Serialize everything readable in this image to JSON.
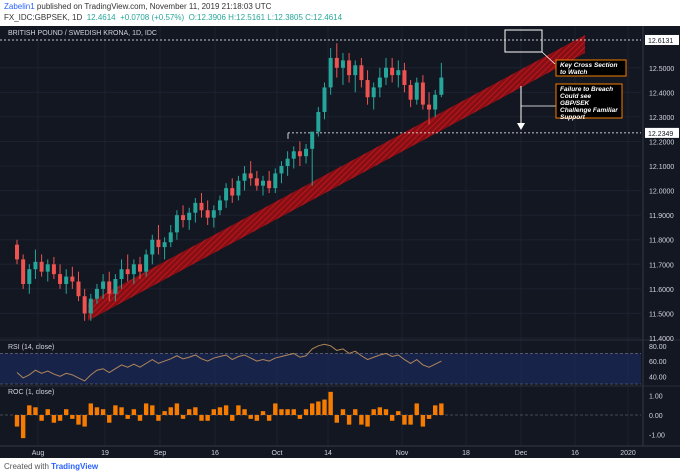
{
  "header": {
    "user": "Zabelin1",
    "published": "published on TradingView.com, November 11, 2019 21:18:03 UTC",
    "symbol": "FX_IDC:GBPSEK, 1D",
    "quote": "12.4614",
    "change": "+0.0708 (+0.57%)",
    "ohlc": "O:12.3906 H:12.5161 L:12.3805 C:12.4614"
  },
  "footer": {
    "created_with": "Created with",
    "brand": "TradingView"
  },
  "chart_data": {
    "type": "candlestick",
    "title": "BRITISH POUND / SWEDISH KRONA, 1D, IDC",
    "price_axis": {
      "range": [
        11.4,
        12.67
      ],
      "ticks": [
        "12.5000",
        "12.4000",
        "12.3000",
        "12.2000",
        "12.1000",
        "12.0000",
        "11.9000",
        "11.8000",
        "11.7000",
        "11.6000",
        "11.5000",
        "11.4000"
      ],
      "tick_values": [
        12.5,
        12.4,
        12.3,
        12.2,
        12.1,
        12.0,
        11.9,
        11.8,
        11.7,
        11.6,
        11.5,
        11.4
      ]
    },
    "levels": [
      {
        "label": "12.6131",
        "value": 12.6131
      },
      {
        "label": "12.2349",
        "value": 12.2349
      }
    ],
    "x_axis": {
      "labels": [
        "Aug",
        "19",
        "Sep",
        "16",
        "Oct",
        "14",
        "Nov",
        "18",
        "Dec",
        "16",
        "2020"
      ]
    },
    "candles_ohlc": [
      [
        11.78,
        11.8,
        11.7,
        11.72
      ],
      [
        11.72,
        11.74,
        11.6,
        11.62
      ],
      [
        11.62,
        11.7,
        11.58,
        11.68
      ],
      [
        11.68,
        11.76,
        11.64,
        11.71
      ],
      [
        11.71,
        11.74,
        11.65,
        11.67
      ],
      [
        11.67,
        11.72,
        11.63,
        11.7
      ],
      [
        11.7,
        11.73,
        11.64,
        11.66
      ],
      [
        11.66,
        11.7,
        11.6,
        11.62
      ],
      [
        11.62,
        11.68,
        11.58,
        11.65
      ],
      [
        11.65,
        11.69,
        11.6,
        11.63
      ],
      [
        11.63,
        11.67,
        11.55,
        11.57
      ],
      [
        11.57,
        11.6,
        11.47,
        11.5
      ],
      [
        11.5,
        11.58,
        11.47,
        11.56
      ],
      [
        11.56,
        11.62,
        11.54,
        11.6
      ],
      [
        11.6,
        11.66,
        11.56,
        11.63
      ],
      [
        11.63,
        11.67,
        11.55,
        11.58
      ],
      [
        11.58,
        11.66,
        11.55,
        11.64
      ],
      [
        11.64,
        11.72,
        11.6,
        11.68
      ],
      [
        11.68,
        11.74,
        11.63,
        11.66
      ],
      [
        11.66,
        11.72,
        11.62,
        11.7
      ],
      [
        11.7,
        11.73,
        11.64,
        11.67
      ],
      [
        11.67,
        11.76,
        11.65,
        11.74
      ],
      [
        11.74,
        11.82,
        11.7,
        11.8
      ],
      [
        11.8,
        11.86,
        11.74,
        11.77
      ],
      [
        11.77,
        11.81,
        11.72,
        11.79
      ],
      [
        11.79,
        11.86,
        11.77,
        11.83
      ],
      [
        11.83,
        11.92,
        11.8,
        11.9
      ],
      [
        11.9,
        11.94,
        11.85,
        11.88
      ],
      [
        11.88,
        11.93,
        11.84,
        11.91
      ],
      [
        11.91,
        11.97,
        11.87,
        11.95
      ],
      [
        11.95,
        11.99,
        11.89,
        11.92
      ],
      [
        11.92,
        11.96,
        11.86,
        11.89
      ],
      [
        11.89,
        11.94,
        11.85,
        11.92
      ],
      [
        11.92,
        11.98,
        11.9,
        11.96
      ],
      [
        11.96,
        12.03,
        11.93,
        12.01
      ],
      [
        12.01,
        12.05,
        11.95,
        11.98
      ],
      [
        11.98,
        12.06,
        11.96,
        12.04
      ],
      [
        12.04,
        12.1,
        12.0,
        12.07
      ],
      [
        12.07,
        12.12,
        12.02,
        12.05
      ],
      [
        12.05,
        12.08,
        12.0,
        12.02
      ],
      [
        12.02,
        12.06,
        11.98,
        12.04
      ],
      [
        12.04,
        12.08,
        11.99,
        12.01
      ],
      [
        12.01,
        12.09,
        11.99,
        12.07
      ],
      [
        12.07,
        12.12,
        12.03,
        12.1
      ],
      [
        12.1,
        12.16,
        12.06,
        12.13
      ],
      [
        12.13,
        12.18,
        12.09,
        12.16
      ],
      [
        12.16,
        12.2,
        12.1,
        12.14
      ],
      [
        12.14,
        12.19,
        12.11,
        12.17
      ],
      [
        12.17,
        12.22,
        12.02,
        12.24
      ],
      [
        12.24,
        12.34,
        12.22,
        12.32
      ],
      [
        12.32,
        12.44,
        12.29,
        12.42
      ],
      [
        12.42,
        12.58,
        12.39,
        12.54
      ],
      [
        12.54,
        12.6,
        12.46,
        12.5
      ],
      [
        12.5,
        12.56,
        12.43,
        12.53
      ],
      [
        12.53,
        12.56,
        12.44,
        12.47
      ],
      [
        12.47,
        12.53,
        12.4,
        12.51
      ],
      [
        12.51,
        12.54,
        12.42,
        12.45
      ],
      [
        12.45,
        12.49,
        12.35,
        12.38
      ],
      [
        12.38,
        12.44,
        12.33,
        12.42
      ],
      [
        12.42,
        12.5,
        12.38,
        12.46
      ],
      [
        12.46,
        12.54,
        12.43,
        12.5
      ],
      [
        12.5,
        12.54,
        12.44,
        12.47
      ],
      [
        12.47,
        12.53,
        12.42,
        12.49
      ],
      [
        12.49,
        12.52,
        12.4,
        12.43
      ],
      [
        12.43,
        12.45,
        12.34,
        12.37
      ],
      [
        12.37,
        12.46,
        12.35,
        12.44
      ],
      [
        12.44,
        12.47,
        12.33,
        12.35
      ],
      [
        12.35,
        12.4,
        12.27,
        12.33
      ],
      [
        12.33,
        12.41,
        12.3,
        12.39
      ],
      [
        12.39,
        12.52,
        12.38,
        12.46
      ]
    ],
    "rising_channel": {
      "lower_start": {
        "x_label": "19 Aug",
        "value": 11.47
      },
      "lower_end": {
        "x_label": "Dec",
        "value": 12.56
      }
    },
    "rsi": {
      "title": "RSI (14, close)",
      "ticks": [
        "80.00",
        "60.00",
        "40.00"
      ],
      "tick_values": [
        80,
        60,
        40
      ],
      "range": [
        30,
        85
      ],
      "band": [
        30,
        70
      ],
      "values": [
        45,
        38,
        42,
        48,
        44,
        47,
        43,
        40,
        44,
        42,
        38,
        34,
        42,
        48,
        50,
        45,
        50,
        55,
        52,
        56,
        52,
        57,
        62,
        57,
        60,
        63,
        67,
        63,
        65,
        68,
        63,
        60,
        64,
        66,
        68,
        62,
        66,
        68,
        64,
        60,
        62,
        60,
        64,
        66,
        68,
        70,
        65,
        67,
        76,
        80,
        82,
        80,
        74,
        76,
        70,
        73,
        67,
        62,
        65,
        68,
        70,
        66,
        68,
        62,
        57,
        62,
        55,
        52,
        56,
        60
      ]
    },
    "roc": {
      "title": "ROC (1, close)",
      "ticks": [
        "1.00",
        "0.00",
        "-1.00"
      ],
      "tick_values": [
        1,
        0,
        -1
      ],
      "range": [
        -1.4,
        1.4
      ],
      "values": [
        -0.6,
        -1.2,
        0.5,
        0.4,
        -0.3,
        0.3,
        -0.4,
        -0.3,
        0.3,
        -0.2,
        -0.5,
        -0.6,
        0.6,
        0.4,
        0.3,
        -0.4,
        0.5,
        0.4,
        -0.2,
        0.3,
        -0.3,
        0.6,
        0.5,
        -0.3,
        0.2,
        0.4,
        0.6,
        -0.2,
        0.3,
        0.4,
        -0.3,
        -0.3,
        0.3,
        0.4,
        0.5,
        -0.3,
        0.5,
        0.3,
        -0.2,
        -0.3,
        0.2,
        -0.3,
        0.6,
        0.3,
        0.3,
        0.3,
        -0.2,
        0.3,
        0.6,
        0.7,
        0.8,
        1.2,
        -0.4,
        0.3,
        -0.5,
        0.3,
        -0.5,
        -0.6,
        0.3,
        0.4,
        0.3,
        -0.3,
        0.2,
        -0.5,
        -0.5,
        0.6,
        -0.6,
        -0.2,
        0.5,
        0.6
      ]
    },
    "annotations": [
      {
        "text": "Key Cross Section to Watch"
      },
      {
        "text": "Failure to Breach Could see GBP/SEK Challenge Familiar Support"
      }
    ]
  }
}
